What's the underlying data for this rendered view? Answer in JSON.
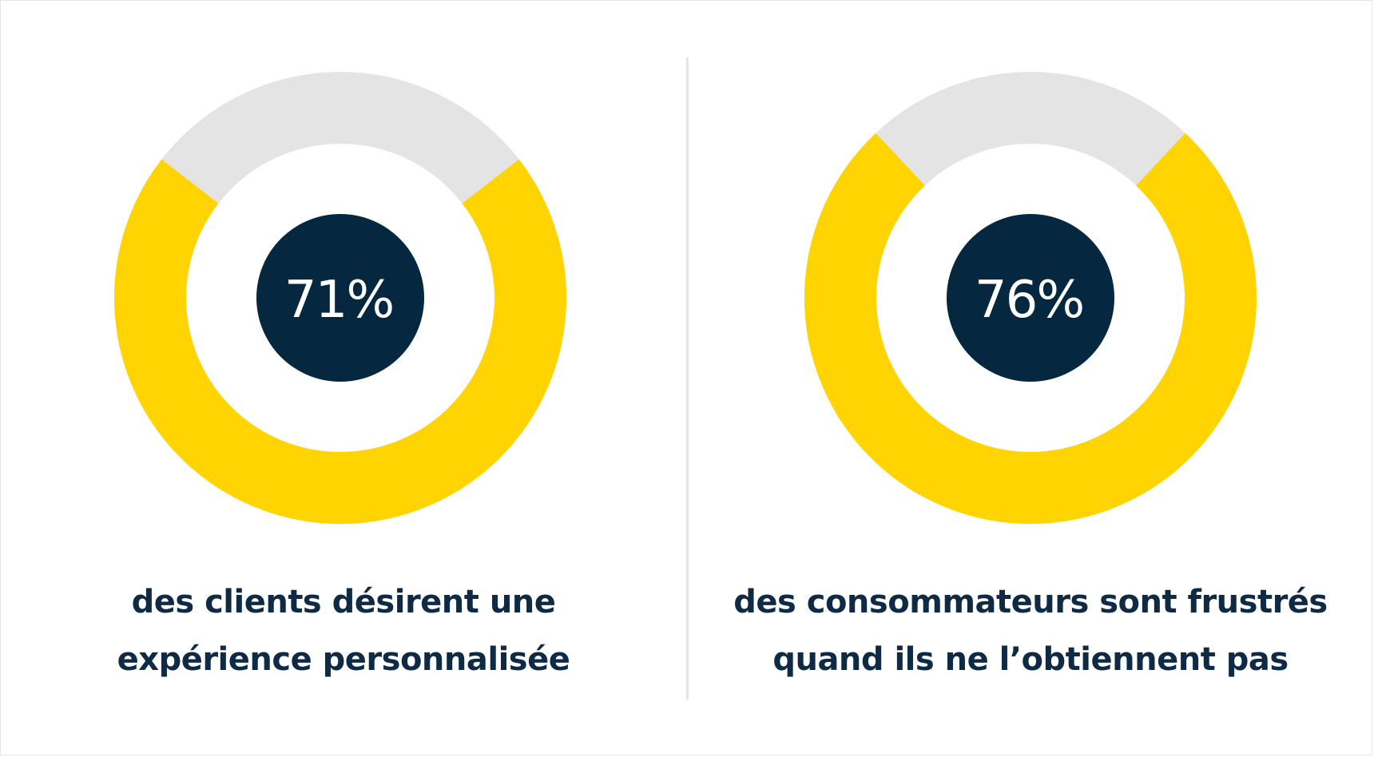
{
  "colors": {
    "accent": "#FFD400",
    "track": "#E4E4E4",
    "center": "#05273F",
    "text": "#0E2A45"
  },
  "chart_data": [
    {
      "type": "pie",
      "values": [
        71,
        29
      ],
      "center_label": "71%",
      "caption_lines": [
        "des clients désirent une",
        "expérience personnalisée"
      ]
    },
    {
      "type": "pie",
      "values": [
        76,
        24
      ],
      "center_label": "76%",
      "caption_lines": [
        "des consommateurs sont frustrés",
        "quand ils ne l’obtiennent pas"
      ]
    }
  ]
}
